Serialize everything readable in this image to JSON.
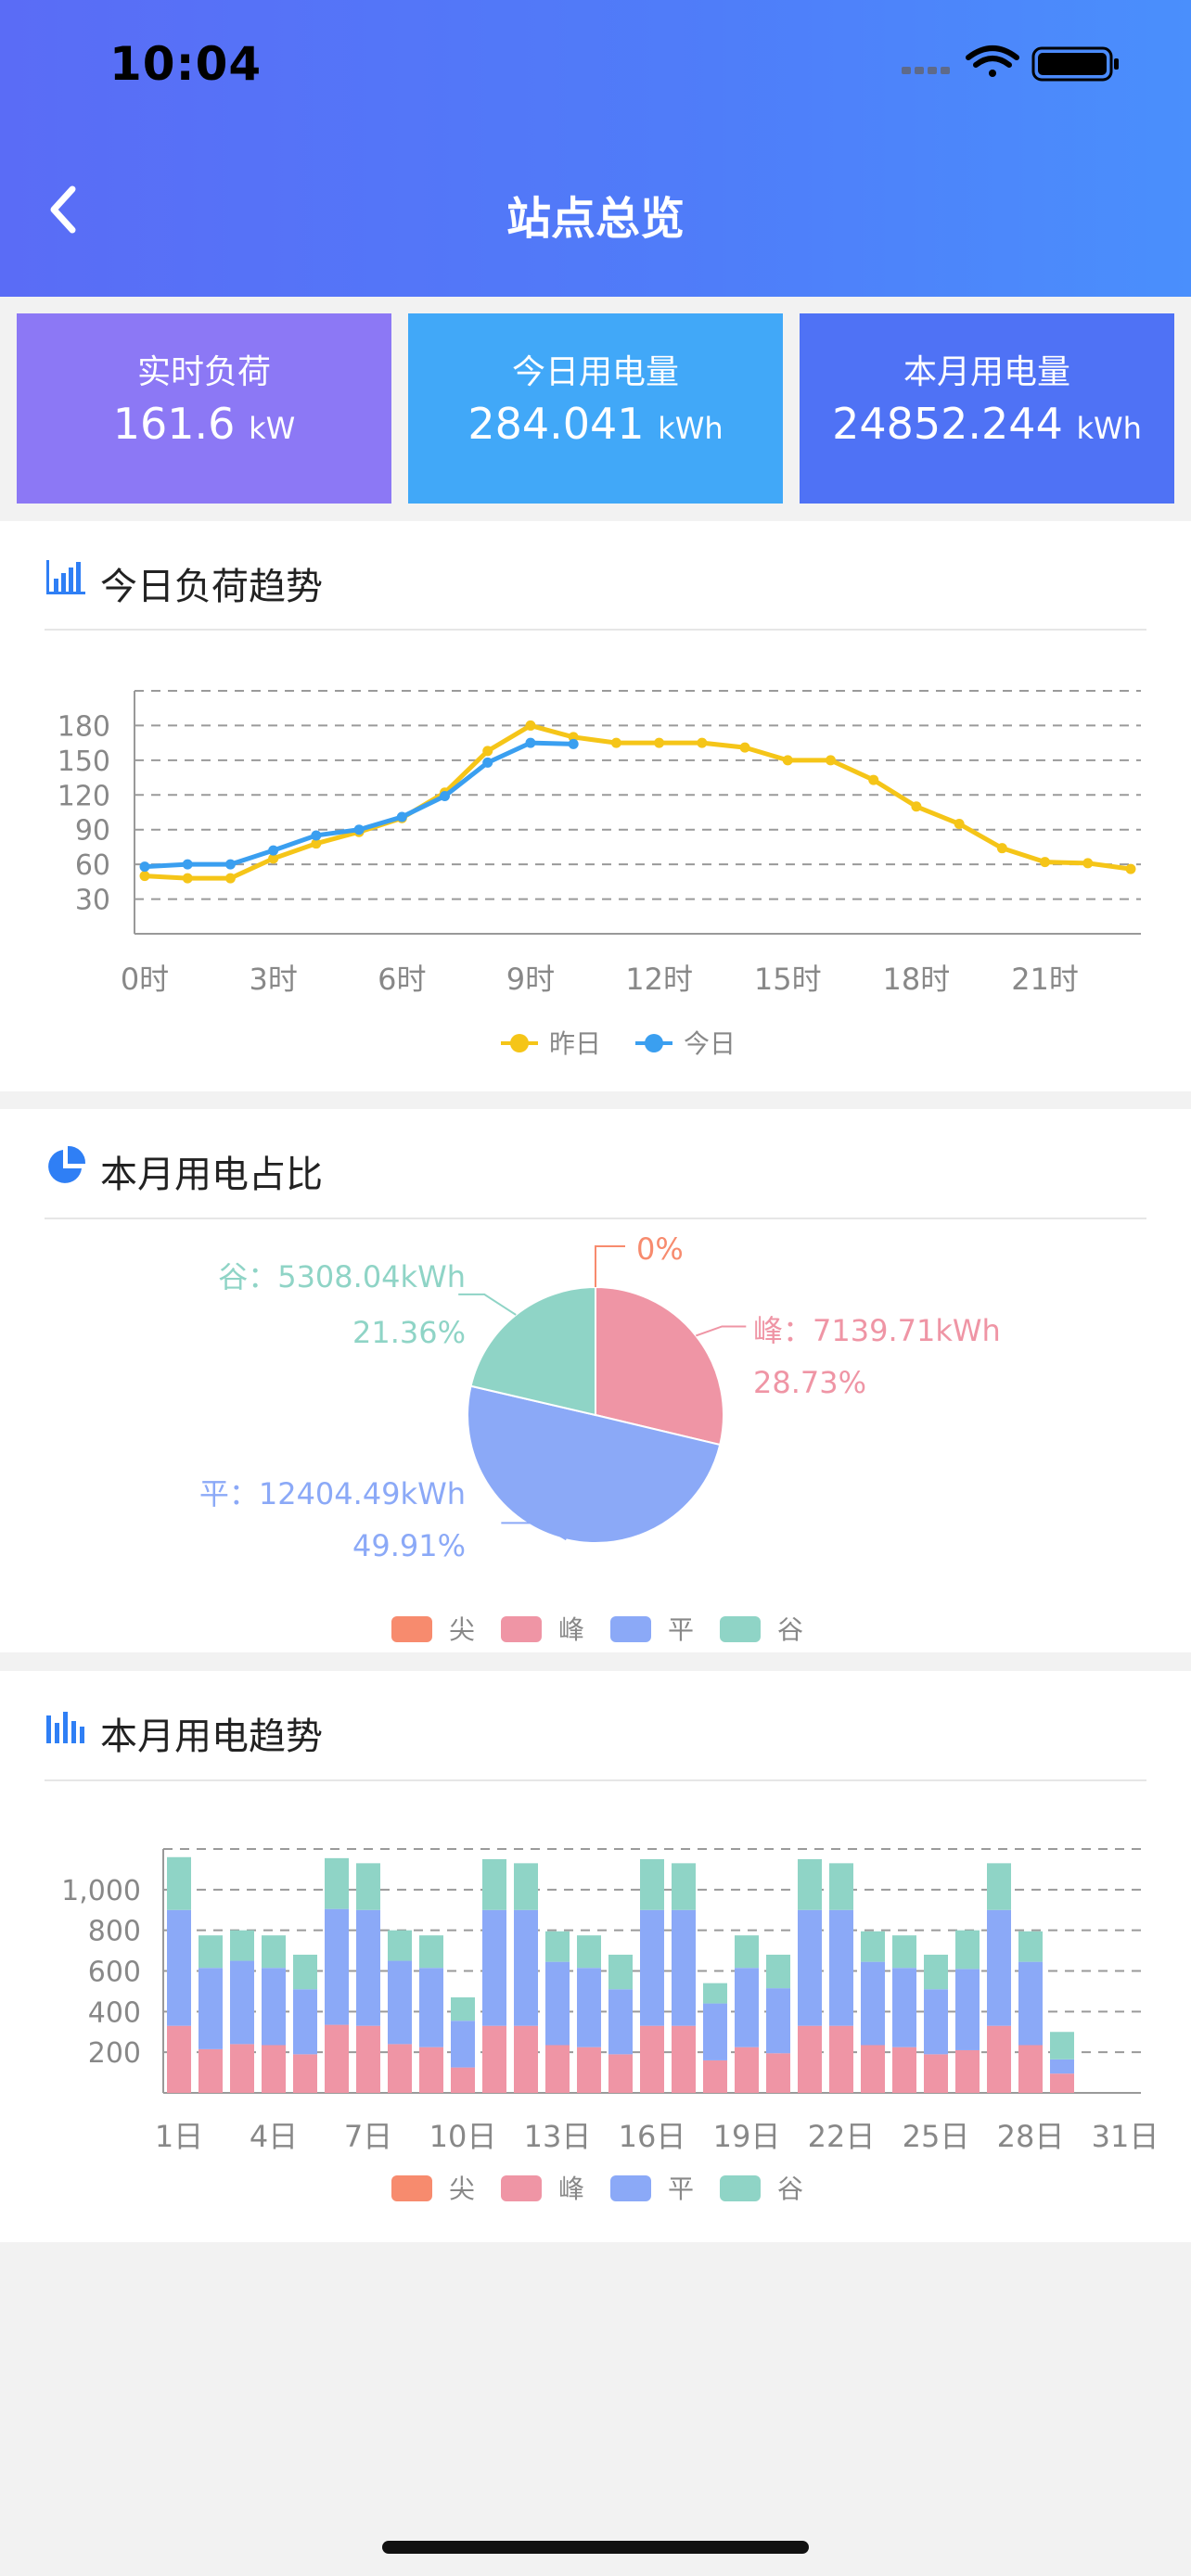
{
  "status": {
    "time": "10:04"
  },
  "header": {
    "title": "站点总览"
  },
  "cards": [
    {
      "label": "实时负荷",
      "value": "161.6",
      "unit": "kW",
      "color": "#8c78f5"
    },
    {
      "label": "今日用电量",
      "value": "284.041",
      "unit": "kWh",
      "color": "#41a8f8"
    },
    {
      "label": "本月用电量",
      "value": "24852.244",
      "unit": "kWh",
      "color": "#4f72f5"
    }
  ],
  "load_section": {
    "title": "今日负荷趋势",
    "icon": "bar-chart-icon"
  },
  "pie_section": {
    "title": "本月用电占比",
    "icon": "pie-chart-icon"
  },
  "month_section": {
    "title": "本月用电趋势",
    "icon": "column-chart-icon"
  },
  "chart_data": [
    {
      "type": "line",
      "x_ticks": [
        "0时",
        "3时",
        "6时",
        "9时",
        "12时",
        "15时",
        "18时",
        "21时"
      ],
      "y_ticks": [
        30,
        60,
        90,
        120,
        150,
        180
      ],
      "ylim": [
        0,
        210
      ],
      "xlim": [
        0,
        23
      ],
      "grid": true,
      "legend_position": "bottom",
      "series": [
        {
          "name": "昨日",
          "color": "#f5c518",
          "x": [
            0,
            1,
            2,
            3,
            4,
            5,
            6,
            7,
            8,
            9,
            10,
            11,
            12,
            13,
            14,
            15,
            16,
            17,
            18,
            19,
            20,
            21,
            22,
            23
          ],
          "values": [
            50,
            48,
            48,
            65,
            78,
            88,
            100,
            122,
            158,
            180,
            170,
            165,
            165,
            165,
            161,
            150,
            150,
            133,
            110,
            95,
            74,
            62,
            61,
            56
          ]
        },
        {
          "name": "今日",
          "color": "#3a9ff0",
          "x": [
            0,
            1,
            2,
            3,
            4,
            5,
            6,
            7,
            8,
            9,
            10
          ],
          "values": [
            58,
            60,
            60,
            72,
            85,
            90,
            101,
            119,
            148,
            165,
            164
          ]
        }
      ]
    },
    {
      "type": "pie",
      "legend_position": "bottom",
      "slices": [
        {
          "name": "尖",
          "value": 0,
          "color": "#f78b6e",
          "label": "0%"
        },
        {
          "name": "峰",
          "value": 7139.71,
          "color": "#ef95a5",
          "label": "峰：7139.71kWh",
          "percent": "28.73%"
        },
        {
          "name": "平",
          "value": 12404.49,
          "color": "#8ba9f7",
          "label": "平：12404.49kWh",
          "percent": "49.91%"
        },
        {
          "name": "谷",
          "value": 5308.04,
          "color": "#8fd4c6",
          "label": "谷：5308.04kWh",
          "percent": "21.36%"
        }
      ]
    },
    {
      "type": "bar",
      "stacked": true,
      "legend_position": "bottom",
      "x_ticks": [
        "1日",
        "4日",
        "7日",
        "10日",
        "13日",
        "16日",
        "19日",
        "22日",
        "25日",
        "28日",
        "31日"
      ],
      "y_ticks": [
        "200",
        "400",
        "600",
        "800",
        "1,000"
      ],
      "ylim": [
        0,
        1200
      ],
      "grid": true,
      "series_names": [
        "尖",
        "峰",
        "平",
        "谷"
      ],
      "series_colors": [
        "#f78b6e",
        "#ef95a5",
        "#8ba9f7",
        "#8fd4c6"
      ],
      "days": [
        {
          "day": 1,
          "values": [
            0,
            330,
            570,
            260
          ]
        },
        {
          "day": 2,
          "values": [
            0,
            215,
            400,
            160
          ]
        },
        {
          "day": 3,
          "values": [
            0,
            240,
            410,
            150
          ]
        },
        {
          "day": 4,
          "values": [
            0,
            235,
            380,
            160
          ]
        },
        {
          "day": 5,
          "values": [
            0,
            190,
            320,
            170
          ]
        },
        {
          "day": 6,
          "values": [
            0,
            335,
            570,
            250
          ]
        },
        {
          "day": 7,
          "values": [
            0,
            330,
            570,
            230
          ]
        },
        {
          "day": 8,
          "values": [
            0,
            240,
            410,
            150
          ]
        },
        {
          "day": 9,
          "values": [
            0,
            225,
            390,
            160
          ]
        },
        {
          "day": 10,
          "values": [
            0,
            125,
            230,
            115
          ]
        },
        {
          "day": 11,
          "values": [
            0,
            330,
            570,
            250
          ]
        },
        {
          "day": 12,
          "values": [
            0,
            330,
            570,
            230
          ]
        },
        {
          "day": 13,
          "values": [
            0,
            235,
            410,
            150
          ]
        },
        {
          "day": 14,
          "values": [
            0,
            225,
            390,
            160
          ]
        },
        {
          "day": 15,
          "values": [
            0,
            190,
            320,
            170
          ]
        },
        {
          "day": 16,
          "values": [
            0,
            330,
            570,
            250
          ]
        },
        {
          "day": 17,
          "values": [
            0,
            330,
            570,
            230
          ]
        },
        {
          "day": 18,
          "values": [
            0,
            160,
            280,
            100
          ]
        },
        {
          "day": 19,
          "values": [
            0,
            225,
            390,
            160
          ]
        },
        {
          "day": 20,
          "values": [
            0,
            195,
            320,
            165
          ]
        },
        {
          "day": 21,
          "values": [
            0,
            330,
            570,
            250
          ]
        },
        {
          "day": 22,
          "values": [
            0,
            330,
            570,
            230
          ]
        },
        {
          "day": 23,
          "values": [
            0,
            235,
            410,
            150
          ]
        },
        {
          "day": 24,
          "values": [
            0,
            225,
            390,
            160
          ]
        },
        {
          "day": 25,
          "values": [
            0,
            190,
            320,
            170
          ]
        },
        {
          "day": 26,
          "values": [
            0,
            210,
            400,
            190
          ]
        },
        {
          "day": 27,
          "values": [
            0,
            330,
            570,
            230
          ]
        },
        {
          "day": 28,
          "values": [
            0,
            235,
            410,
            150
          ]
        },
        {
          "day": 29,
          "values": [
            0,
            95,
            70,
            135
          ]
        }
      ]
    }
  ]
}
